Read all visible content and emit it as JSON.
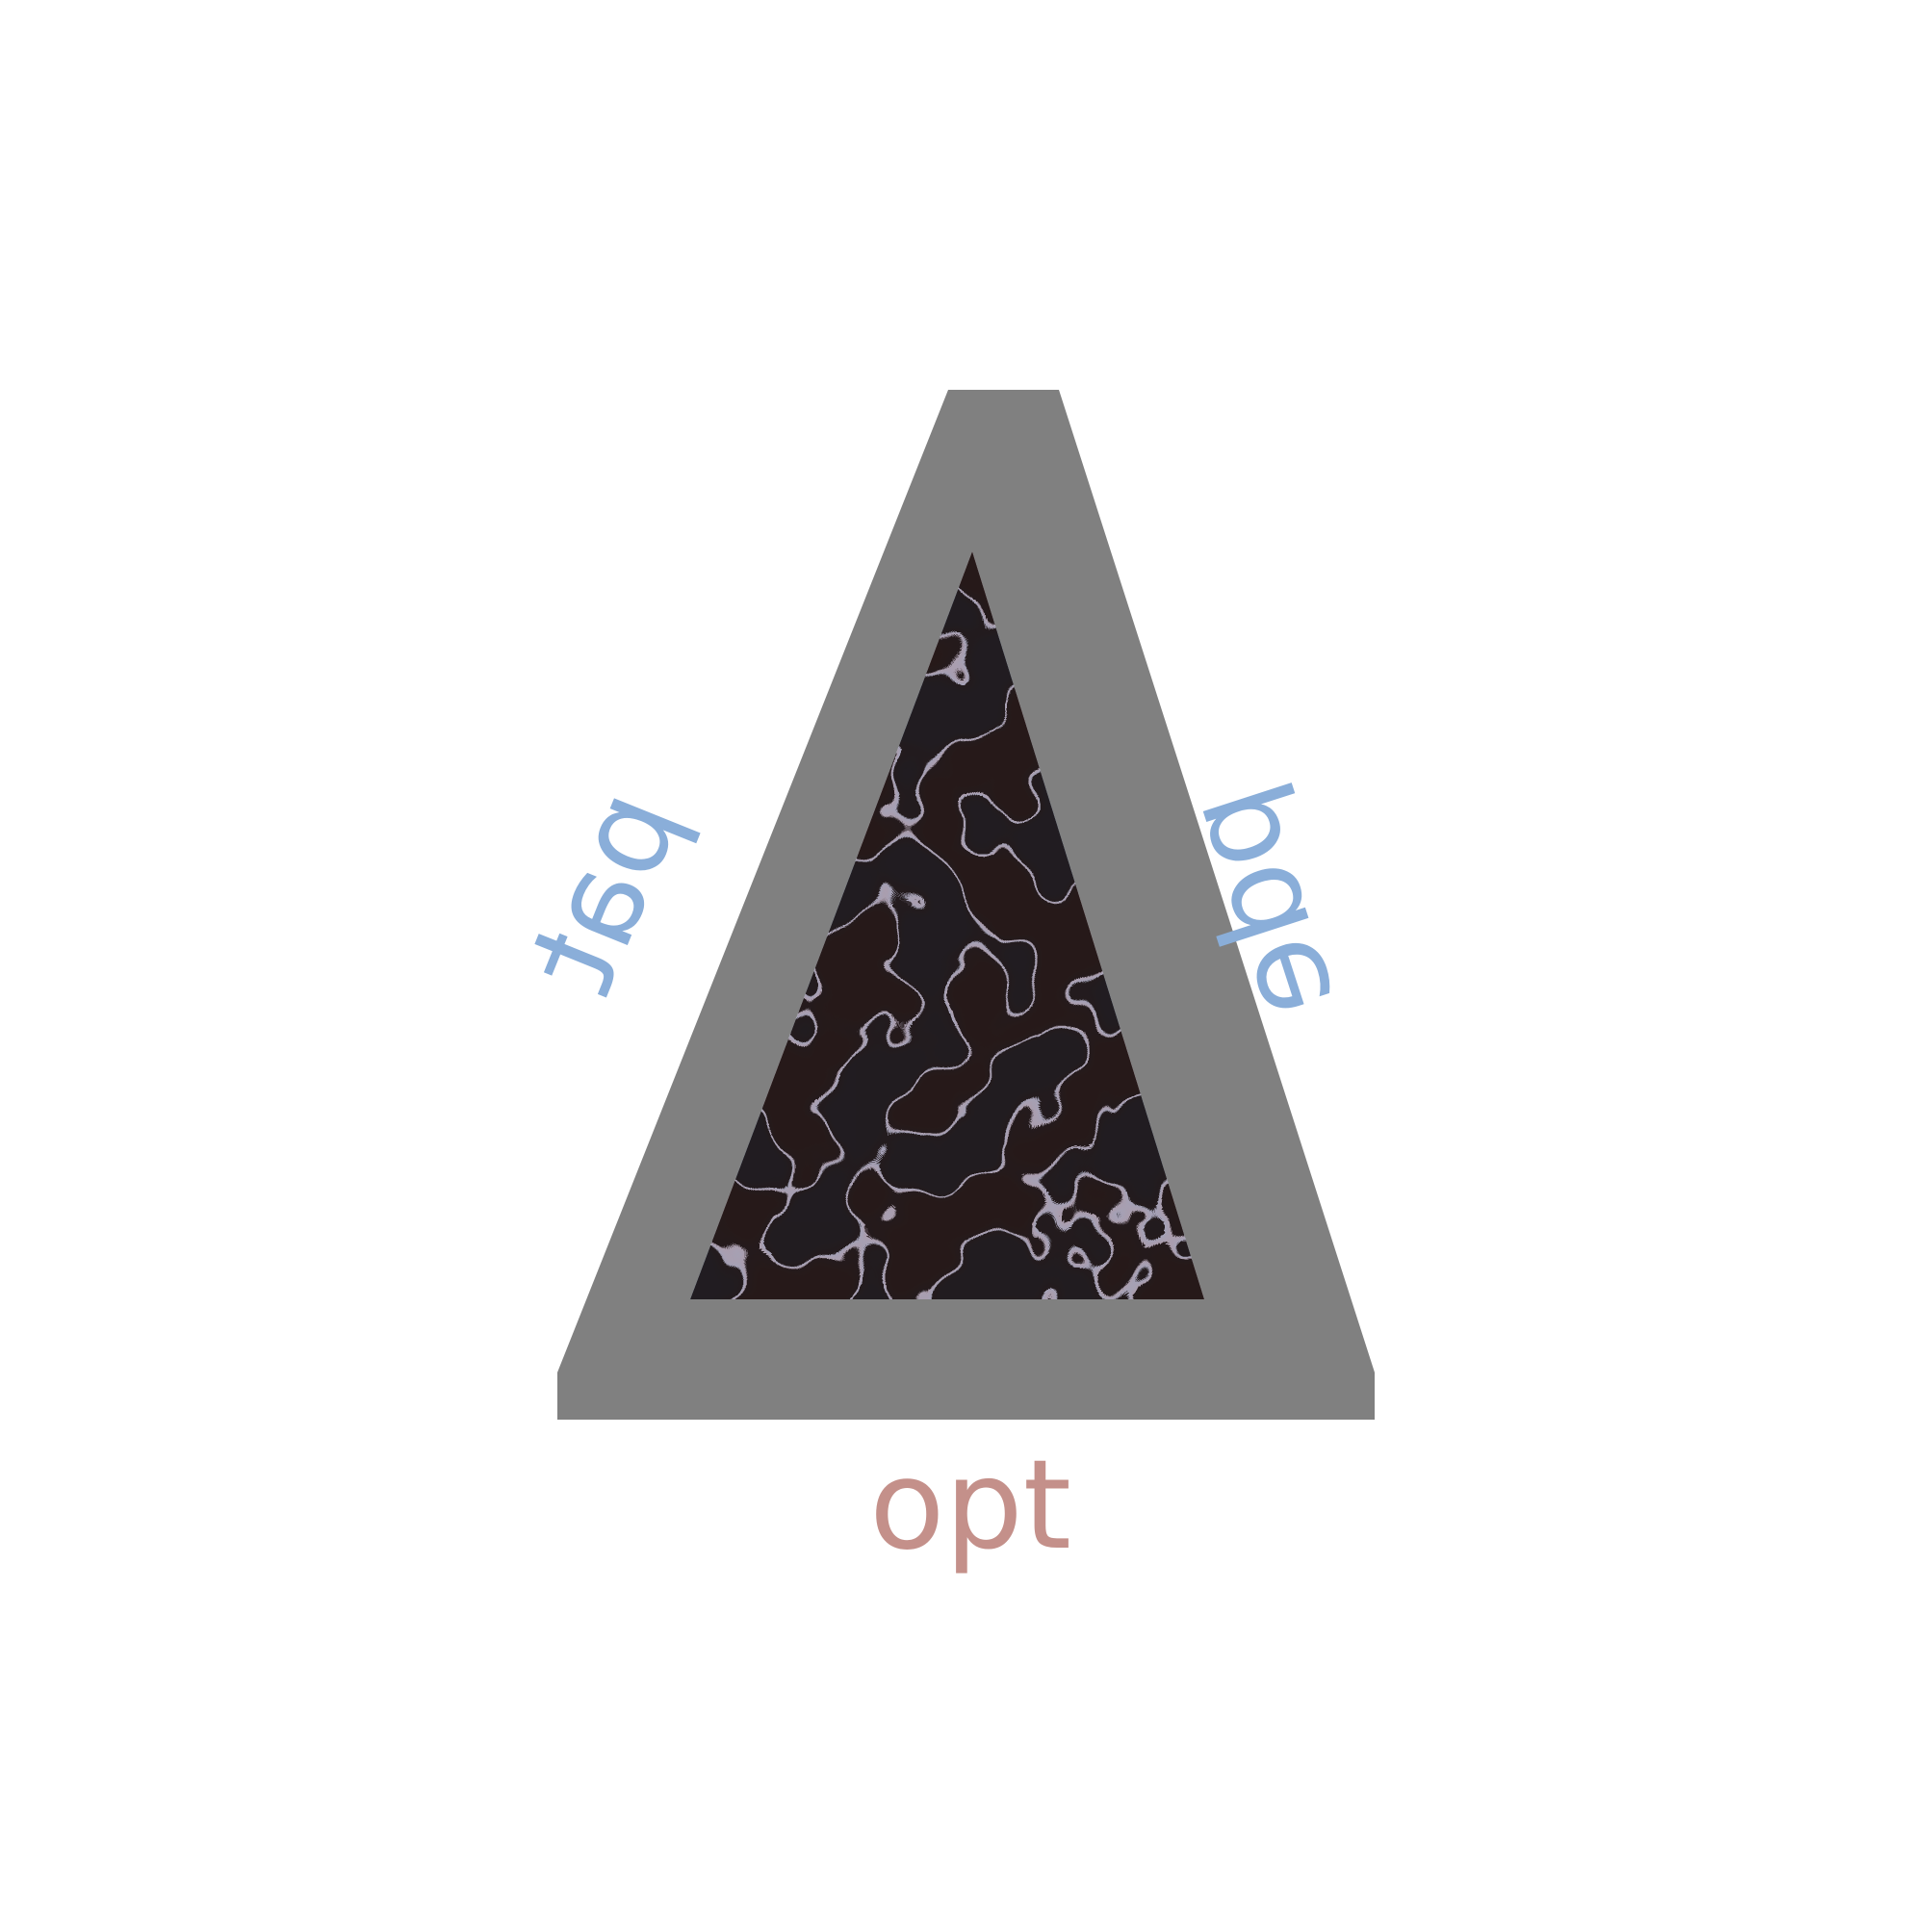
{
  "labels": {
    "left": "pat",
    "right": "pde",
    "bottom": "opt"
  },
  "colors": {
    "frame": "#808080",
    "blue": "#8aaed9",
    "red": "#c4908a",
    "dark": "#161010",
    "background": "#ffffff"
  },
  "icons": {
    "logo": "delta-triangle-icon",
    "pattern": "labyrinth-turing-pattern"
  }
}
